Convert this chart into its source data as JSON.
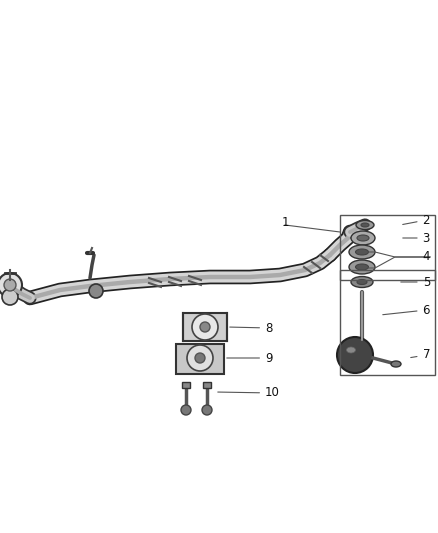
{
  "bg_color": "#ffffff",
  "figsize": [
    4.38,
    5.33
  ],
  "dpi": 100,
  "label_fontsize": 8.5,
  "line_color": "#333333",
  "box_color": "#555555",
  "label_color": "#111111"
}
